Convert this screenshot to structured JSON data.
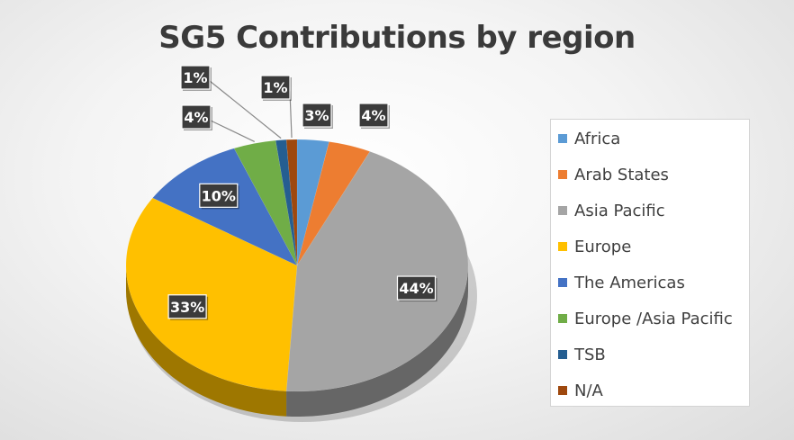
{
  "chart_data": {
    "type": "pie",
    "title": "SG5 Contributions by region",
    "legend_position": "right",
    "slices": [
      {
        "name": "Africa",
        "value": 3,
        "label": "3%",
        "color": "#5B9BD5"
      },
      {
        "name": "Arab States",
        "value": 4,
        "label": "4%",
        "color": "#ED7D31"
      },
      {
        "name": "Asia Pacific",
        "value": 44,
        "label": "44%",
        "color": "#A5A5A5"
      },
      {
        "name": "Europe",
        "value": 33,
        "label": "33%",
        "color": "#FFC000"
      },
      {
        "name": "The Americas",
        "value": 10,
        "label": "10%",
        "color": "#4472C4"
      },
      {
        "name": "Europe /Asia Pacific",
        "value": 4,
        "label": "4%",
        "color": "#70AD47"
      },
      {
        "name": "TSB",
        "value": 1,
        "label": "1%",
        "color": "#255E91"
      },
      {
        "name": "N/A",
        "value": 1,
        "label": "1%",
        "color": "#9E480E"
      }
    ]
  }
}
